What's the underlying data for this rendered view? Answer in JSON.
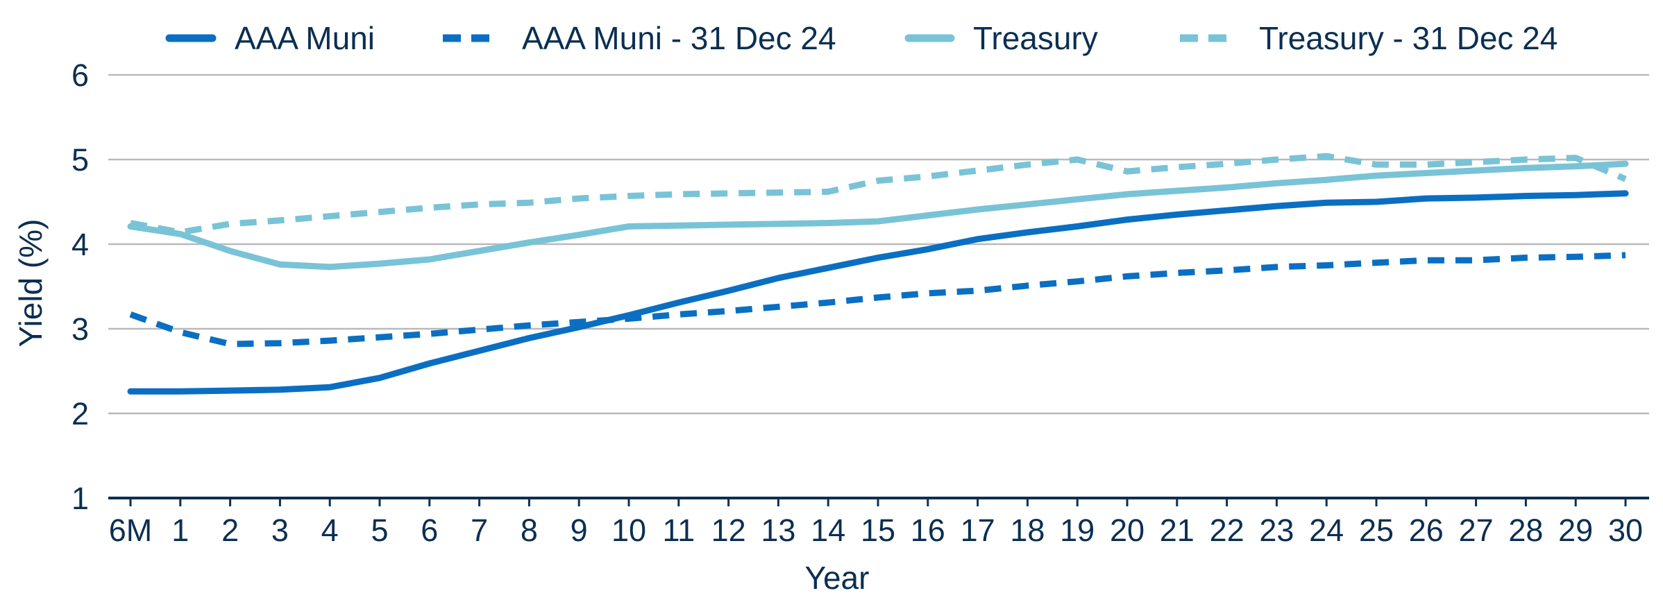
{
  "colors": {
    "muni": "#0a6fc2",
    "treasury": "#79c3d7",
    "grid": "#b9b9b9",
    "axis": "#0b2f52",
    "text": "#0b2f52"
  },
  "legend": {
    "aaa_muni": "AAA Muni",
    "aaa_muni_dec": "AAA Muni - 31 Dec 24",
    "treasury": "Treasury",
    "treasury_dec": "Treasury - 31 Dec 24"
  },
  "chart_data": {
    "type": "line",
    "xlabel": "Year",
    "ylabel": "Yield (%)",
    "ylim": [
      1,
      6
    ],
    "yticks": [
      1,
      2,
      3,
      4,
      5,
      6
    ],
    "grid": true,
    "legend_position": "top",
    "categories": [
      "6M",
      "1",
      "2",
      "3",
      "4",
      "5",
      "6",
      "7",
      "8",
      "9",
      "10",
      "11",
      "12",
      "13",
      "14",
      "15",
      "16",
      "17",
      "18",
      "19",
      "20",
      "21",
      "22",
      "23",
      "24",
      "25",
      "26",
      "27",
      "28",
      "29",
      "30"
    ],
    "series": [
      {
        "name": "AAA Muni",
        "style": "solid",
        "color": "#0a6fc2",
        "values": [
          2.26,
          2.26,
          2.27,
          2.28,
          2.31,
          2.42,
          2.59,
          2.74,
          2.89,
          3.02,
          3.16,
          3.31,
          3.45,
          3.6,
          3.72,
          3.84,
          3.94,
          4.06,
          4.14,
          4.21,
          4.29,
          4.35,
          4.4,
          4.45,
          4.49,
          4.5,
          4.54,
          4.55,
          4.57,
          4.58,
          4.6
        ]
      },
      {
        "name": "AAA Muni - 31 Dec 24",
        "style": "dashed",
        "color": "#0a6fc2",
        "values": [
          3.17,
          2.96,
          2.82,
          2.83,
          2.86,
          2.9,
          2.94,
          2.99,
          3.04,
          3.08,
          3.12,
          3.17,
          3.21,
          3.26,
          3.31,
          3.37,
          3.42,
          3.45,
          3.51,
          3.56,
          3.62,
          3.66,
          3.69,
          3.73,
          3.75,
          3.78,
          3.81,
          3.81,
          3.84,
          3.85,
          3.87
        ]
      },
      {
        "name": "Treasury",
        "style": "solid",
        "color": "#79c3d7",
        "values": [
          4.21,
          4.12,
          3.92,
          3.76,
          3.73,
          3.77,
          3.82,
          3.92,
          4.02,
          4.11,
          4.21,
          4.22,
          4.23,
          4.24,
          4.25,
          4.27,
          4.34,
          4.41,
          4.47,
          4.53,
          4.59,
          4.63,
          4.67,
          4.72,
          4.76,
          4.81,
          4.84,
          4.87,
          4.9,
          4.92,
          4.95
        ]
      },
      {
        "name": "Treasury - 31 Dec 24",
        "style": "dashed",
        "color": "#79c3d7",
        "values": [
          4.25,
          4.14,
          4.24,
          4.28,
          4.33,
          4.38,
          4.43,
          4.47,
          4.49,
          4.54,
          4.57,
          4.59,
          4.6,
          4.61,
          4.62,
          4.75,
          4.8,
          4.87,
          4.94,
          5.0,
          4.86,
          4.91,
          4.95,
          5.0,
          5.04,
          4.94,
          4.94,
          4.97,
          5.0,
          5.02,
          4.77
        ]
      }
    ]
  }
}
